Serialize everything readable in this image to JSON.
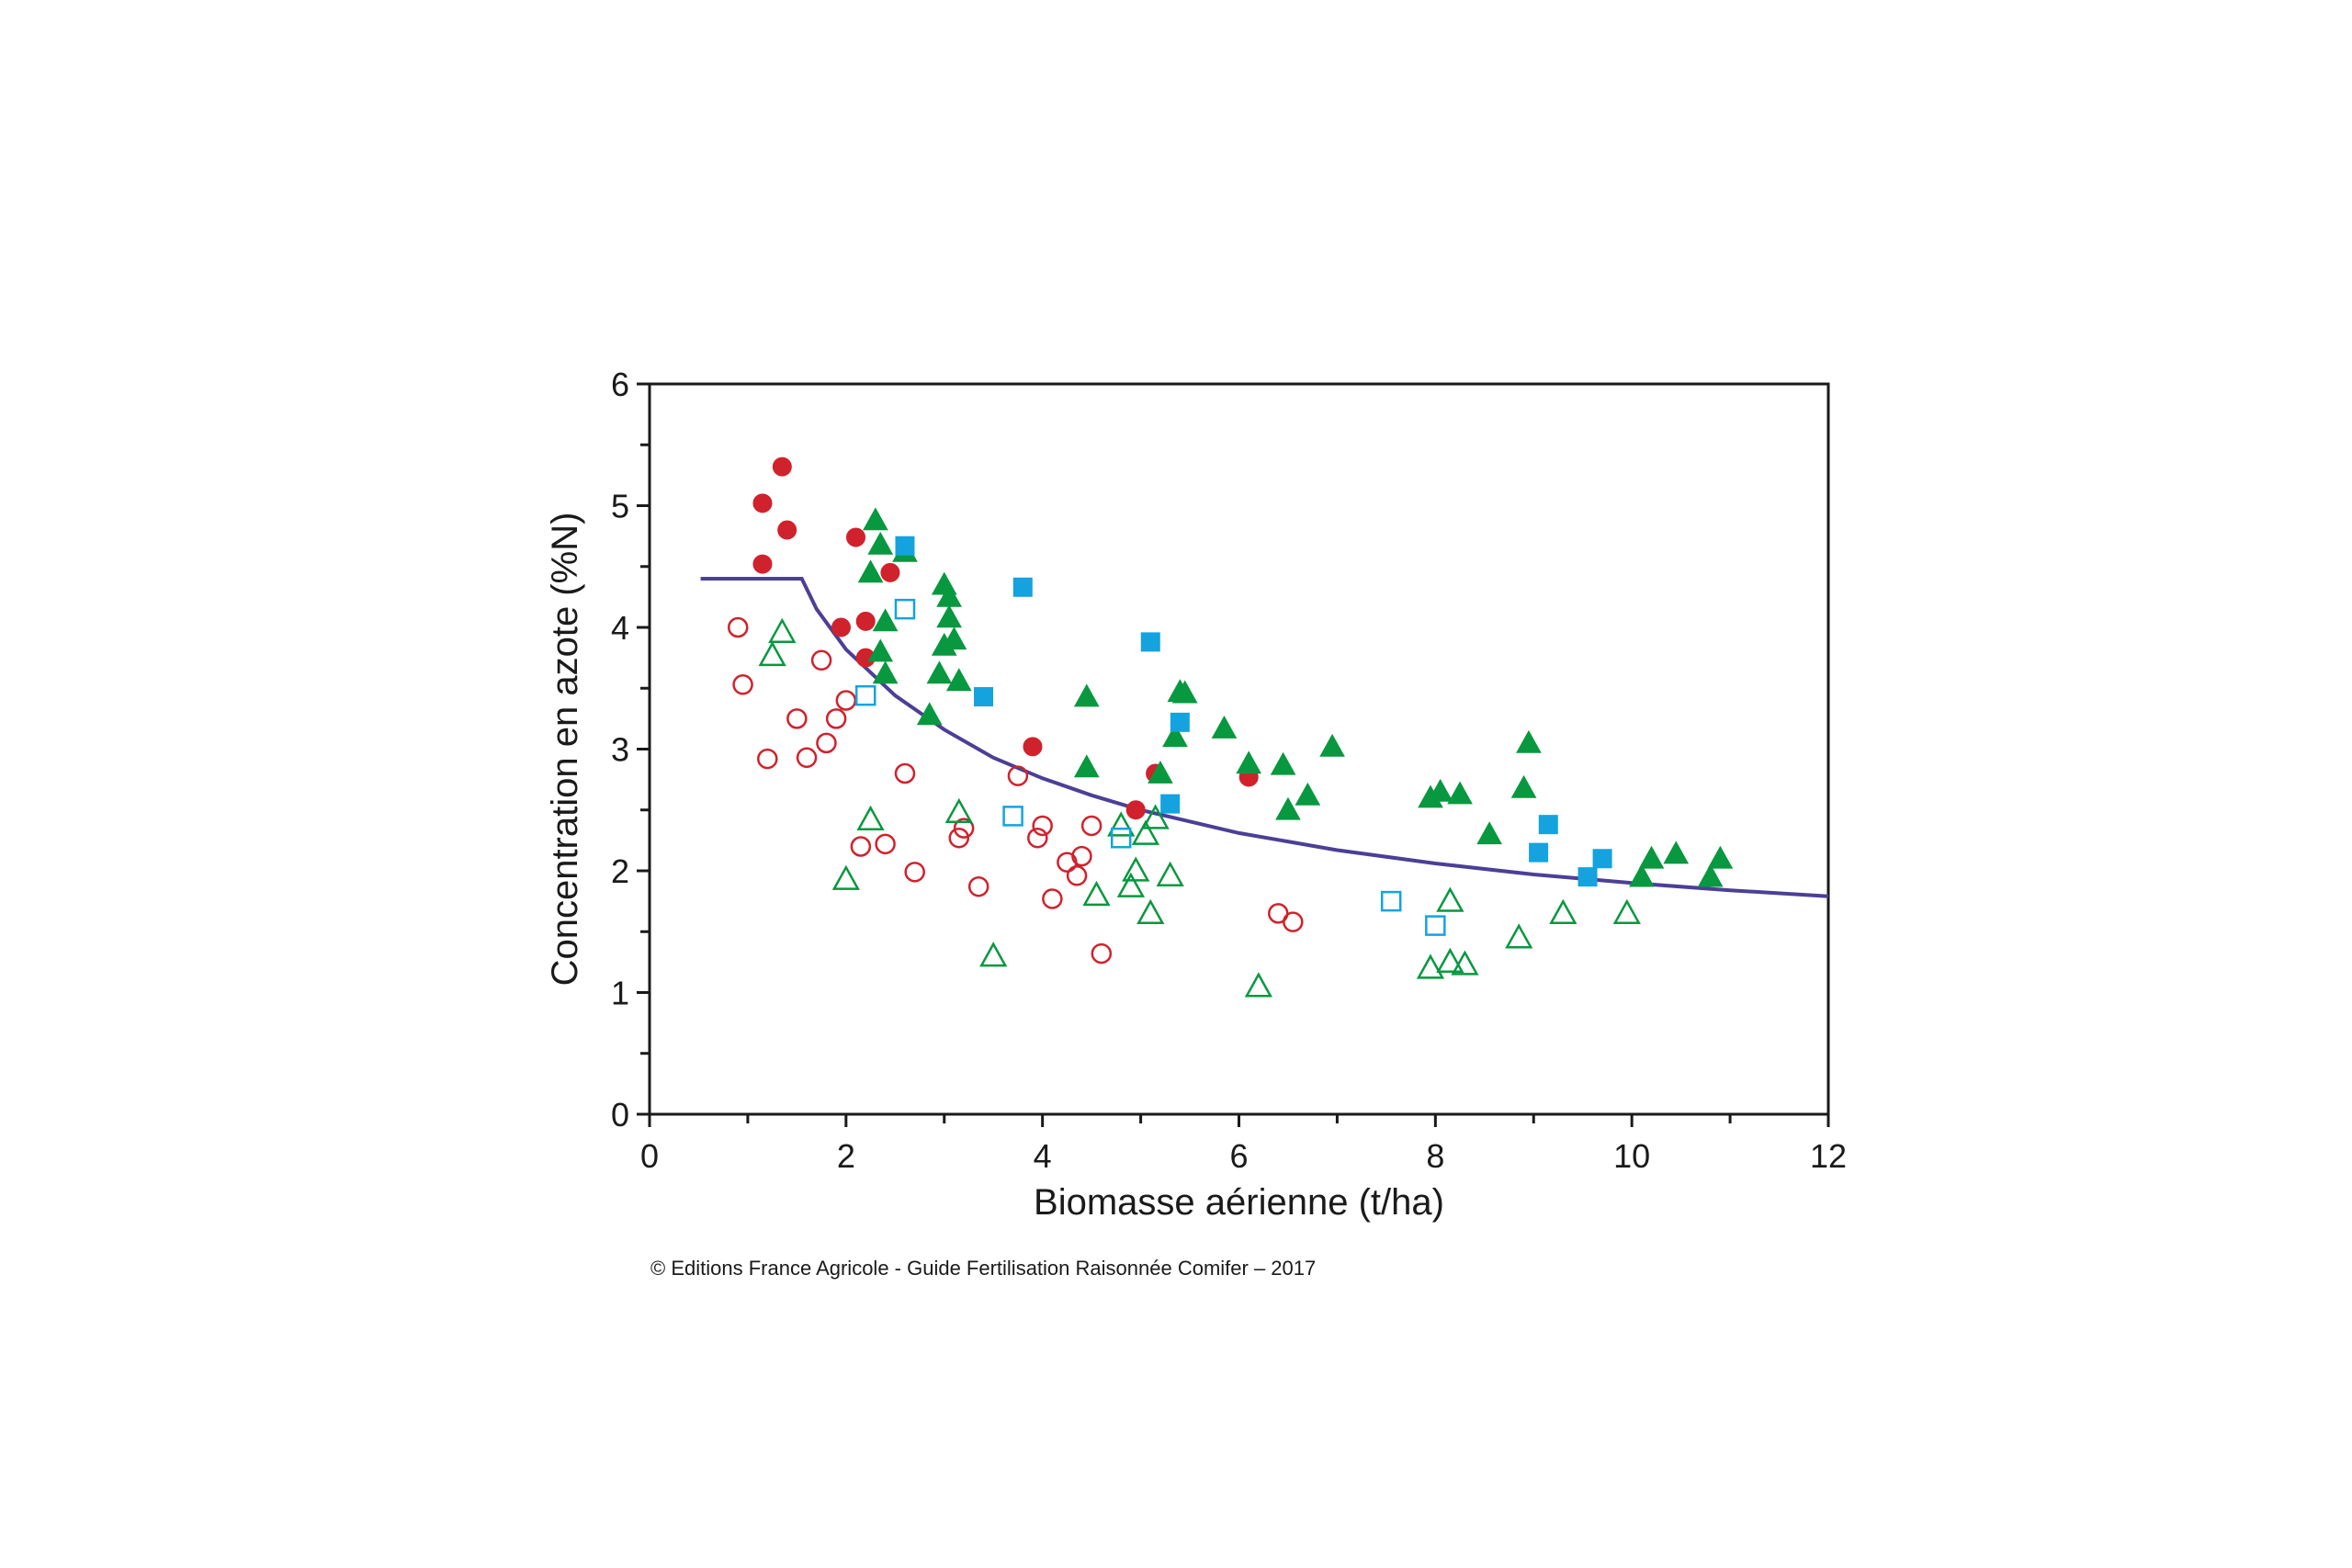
{
  "credit": "© Editions France Agricole - Guide Fertilisation Raisonnée Comifer – 2017",
  "colors": {
    "red": "#d0222c",
    "green": "#08983f",
    "blue": "#15a3df",
    "curve": "#4b3f96",
    "axis": "#1a1a1a"
  },
  "chart_data": {
    "type": "scatter",
    "title": "",
    "xlabel": "Biomasse aérienne (t/ha)",
    "ylabel": "Concentration en azote (%N)",
    "xlim": [
      0,
      12
    ],
    "ylim": [
      0,
      6
    ],
    "xticks": [
      "0",
      "2",
      "4",
      "6",
      "8",
      "10",
      "12"
    ],
    "yticks": [
      "0",
      "1",
      "2",
      "3",
      "4",
      "5",
      "6"
    ],
    "grid": false,
    "series": [
      {
        "marker": "circle",
        "filled": true,
        "color": "#d0222c",
        "points": [
          [
            1.15,
            4.52
          ],
          [
            1.15,
            5.02
          ],
          [
            1.35,
            5.32
          ],
          [
            1.4,
            4.8
          ],
          [
            1.95,
            4.0
          ],
          [
            2.1,
            4.74
          ],
          [
            2.2,
            4.05
          ],
          [
            2.2,
            3.75
          ],
          [
            2.45,
            4.45
          ],
          [
            3.9,
            3.02
          ],
          [
            5.15,
            2.8
          ],
          [
            4.95,
            2.5
          ],
          [
            6.1,
            2.77
          ]
        ]
      },
      {
        "marker": "circle",
        "filled": false,
        "color": "#d0222c",
        "points": [
          [
            0.9,
            4.0
          ],
          [
            0.95,
            3.53
          ],
          [
            1.2,
            2.92
          ],
          [
            1.5,
            3.25
          ],
          [
            1.6,
            2.93
          ],
          [
            1.75,
            3.73
          ],
          [
            1.8,
            3.05
          ],
          [
            1.9,
            3.25
          ],
          [
            2.0,
            3.4
          ],
          [
            2.15,
            2.2
          ],
          [
            2.4,
            2.22
          ],
          [
            2.6,
            2.8
          ],
          [
            2.7,
            1.99
          ],
          [
            3.15,
            2.27
          ],
          [
            3.2,
            2.35
          ],
          [
            3.35,
            1.87
          ],
          [
            3.75,
            2.78
          ],
          [
            3.95,
            2.27
          ],
          [
            4.0,
            2.37
          ],
          [
            4.1,
            1.77
          ],
          [
            4.25,
            2.07
          ],
          [
            4.35,
            1.96
          ],
          [
            4.4,
            2.12
          ],
          [
            4.5,
            2.37
          ],
          [
            4.6,
            1.32
          ],
          [
            6.4,
            1.65
          ],
          [
            6.55,
            1.58
          ]
        ]
      },
      {
        "marker": "triangle",
        "filled": true,
        "color": "#08983f",
        "points": [
          [
            2.25,
            4.45
          ],
          [
            2.3,
            4.88
          ],
          [
            2.35,
            4.68
          ],
          [
            2.35,
            3.8
          ],
          [
            2.4,
            4.05
          ],
          [
            2.4,
            3.62
          ],
          [
            2.6,
            4.62
          ],
          [
            2.85,
            3.28
          ],
          [
            2.95,
            3.62
          ],
          [
            3.0,
            4.35
          ],
          [
            3.0,
            3.85
          ],
          [
            3.05,
            4.25
          ],
          [
            3.05,
            4.08
          ],
          [
            3.1,
            3.9
          ],
          [
            3.15,
            3.56
          ],
          [
            4.45,
            3.43
          ],
          [
            4.45,
            2.85
          ],
          [
            5.2,
            2.8
          ],
          [
            5.35,
            3.1
          ],
          [
            5.4,
            3.47
          ],
          [
            5.45,
            3.46
          ],
          [
            5.85,
            3.17
          ],
          [
            6.1,
            2.88
          ],
          [
            6.45,
            2.87
          ],
          [
            6.5,
            2.5
          ],
          [
            6.7,
            2.62
          ],
          [
            6.95,
            3.02
          ],
          [
            7.95,
            2.6
          ],
          [
            8.05,
            2.65
          ],
          [
            8.25,
            2.63
          ],
          [
            8.55,
            2.3
          ],
          [
            8.9,
            2.68
          ],
          [
            8.95,
            3.05
          ],
          [
            10.1,
            1.95
          ],
          [
            10.2,
            2.1
          ],
          [
            10.45,
            2.14
          ],
          [
            10.8,
            1.95
          ],
          [
            10.9,
            2.1
          ]
        ]
      },
      {
        "marker": "triangle",
        "filled": false,
        "color": "#08983f",
        "points": [
          [
            1.25,
            3.77
          ],
          [
            1.35,
            3.96
          ],
          [
            2.0,
            1.93
          ],
          [
            2.25,
            2.42
          ],
          [
            3.15,
            2.48
          ],
          [
            3.5,
            1.3
          ],
          [
            4.55,
            1.8
          ],
          [
            4.8,
            2.37
          ],
          [
            4.9,
            1.87
          ],
          [
            4.95,
            2.0
          ],
          [
            5.05,
            2.3
          ],
          [
            5.1,
            1.65
          ],
          [
            5.15,
            2.43
          ],
          [
            5.3,
            1.96
          ],
          [
            6.2,
            1.05
          ],
          [
            7.95,
            1.2
          ],
          [
            8.15,
            1.25
          ],
          [
            8.15,
            1.75
          ],
          [
            8.3,
            1.23
          ],
          [
            8.85,
            1.45
          ],
          [
            9.3,
            1.65
          ],
          [
            9.95,
            1.65
          ]
        ]
      },
      {
        "marker": "square",
        "filled": true,
        "color": "#15a3df",
        "points": [
          [
            2.6,
            4.67
          ],
          [
            3.4,
            3.43
          ],
          [
            3.8,
            4.33
          ],
          [
            5.1,
            3.88
          ],
          [
            5.3,
            2.55
          ],
          [
            5.4,
            3.22
          ],
          [
            9.05,
            2.15
          ],
          [
            9.15,
            2.38
          ],
          [
            9.55,
            1.95
          ],
          [
            9.7,
            2.1
          ]
        ]
      },
      {
        "marker": "square",
        "filled": false,
        "color": "#15a3df",
        "points": [
          [
            2.2,
            3.44
          ],
          [
            2.6,
            4.15
          ],
          [
            3.7,
            2.45
          ],
          [
            4.8,
            2.27
          ],
          [
            7.55,
            1.75
          ],
          [
            8.0,
            1.55
          ]
        ]
      }
    ],
    "curve": {
      "type": "line",
      "points": [
        [
          0.52,
          4.4
        ],
        [
          1.55,
          4.4
        ],
        [
          1.7,
          4.15
        ],
        [
          2.0,
          3.82
        ],
        [
          2.5,
          3.44
        ],
        [
          3.0,
          3.16
        ],
        [
          3.5,
          2.93
        ],
        [
          4.0,
          2.76
        ],
        [
          4.5,
          2.62
        ],
        [
          5.0,
          2.5
        ],
        [
          6.0,
          2.31
        ],
        [
          7.0,
          2.17
        ],
        [
          8.0,
          2.06
        ],
        [
          9.0,
          1.97
        ],
        [
          10.0,
          1.9
        ],
        [
          11.0,
          1.84
        ],
        [
          12.0,
          1.79
        ]
      ]
    }
  }
}
